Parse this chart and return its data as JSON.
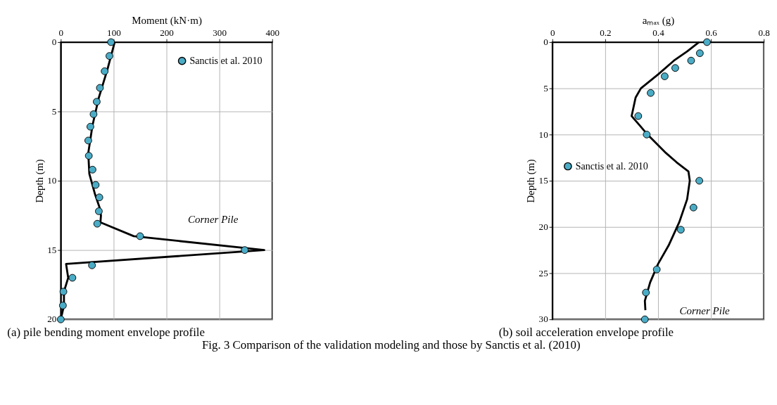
{
  "chart_data": [
    {
      "type": "scatter",
      "title": "(a) pile bending moment envelope profile",
      "xlabel": "Moment (kN·m)",
      "ylabel": "Depth (m)",
      "xlim": [
        0,
        400
      ],
      "xticks": [
        0,
        100,
        200,
        300,
        400
      ],
      "ylim": [
        20,
        0
      ],
      "yticks": [
        0,
        5,
        10,
        15,
        20
      ],
      "grid": true,
      "legend": "top right",
      "annotations": [
        "Corner Pile",
        "Fig. 3 Comparison of the validation modeling and those by Sanctis et al. (2010)"
      ],
      "series": [
        {
          "name": "Sanctis et al. 2010",
          "type": "scatter",
          "marker": "circle",
          "color": "#4bacc6",
          "x": [
            95,
            92,
            83,
            74,
            68,
            62,
            56,
            52,
            53,
            60,
            66,
            73,
            72,
            69,
            150,
            348,
            59,
            22,
            5,
            4,
            0
          ],
          "values": [
            0,
            1.0,
            2.1,
            3.3,
            4.3,
            5.2,
            6.1,
            7.1,
            8.2,
            9.2,
            10.3,
            11.2,
            12.2,
            13.1,
            14.0,
            15.0,
            16.1,
            17.0,
            18.0,
            19.0,
            20.0
          ]
        },
        {
          "type": "line",
          "marker": "none",
          "color": "#000000",
          "line_style": "solid",
          "x": [
            102,
            88,
            72,
            60,
            52,
            54,
            65,
            74,
            76,
            75,
            138,
            385,
            10,
            14,
            6,
            6,
            0
          ],
          "values": [
            0,
            2,
            4,
            6,
            8,
            9.5,
            11,
            12,
            12.5,
            13,
            14.0,
            15.0,
            16.0,
            17.0,
            18.0,
            19.0,
            20.0
          ]
        }
      ]
    },
    {
      "type": "scatter",
      "title": "(b) soil acceleration envelope profile",
      "xlabel": "aₘₐₓ (g)",
      "ylabel": "Depth (m)",
      "xlim": [
        0,
        0.8
      ],
      "xticks": [
        0,
        0.2,
        0.4,
        0.6,
        0.8
      ],
      "ylim": [
        30,
        0
      ],
      "yticks": [
        0,
        5,
        10,
        15,
        20,
        25,
        30
      ],
      "grid": true,
      "legend": "left",
      "annotations": [
        "Corner Pile"
      ],
      "series": [
        {
          "name": "Sanctis et al. 2010",
          "type": "scatter",
          "marker": "circle",
          "color": "#4bacc6",
          "x": [
            0.585,
            0.558,
            0.525,
            0.465,
            0.425,
            0.372,
            0.325,
            0.357,
            0.556,
            0.534,
            0.486,
            0.395,
            0.354,
            0.35
          ],
          "values": [
            0,
            1.2,
            2.0,
            2.8,
            3.7,
            5.5,
            8.0,
            10.0,
            15.0,
            17.9,
            20.3,
            24.6,
            27.1,
            30
          ]
        },
        {
          "type": "line",
          "marker": "none",
          "color": "#000000",
          "line_style": "solid",
          "x": [
            0.555,
            0.51,
            0.46,
            0.4,
            0.335,
            0.315,
            0.3,
            0.33,
            0.36,
            0.43,
            0.47,
            0.515,
            0.52,
            0.51,
            0.48,
            0.44,
            0.4,
            0.37,
            0.35,
            0.352
          ],
          "values": [
            0,
            1,
            2,
            3.5,
            5,
            6,
            8,
            9,
            10,
            12,
            13,
            14,
            15,
            17,
            19.5,
            22,
            24,
            26,
            28,
            29
          ]
        }
      ]
    }
  ]
}
